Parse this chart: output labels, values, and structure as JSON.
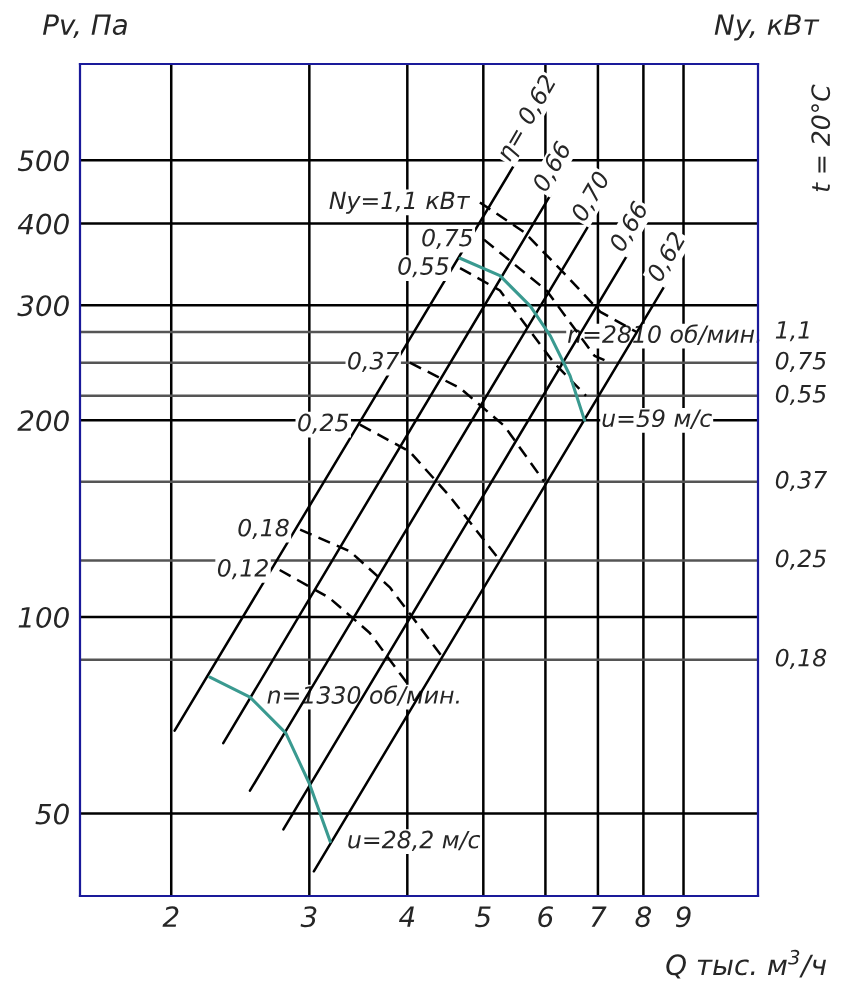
{
  "chart_data": {
    "type": "line",
    "xlabel": "Q тыс. м$^{3}$/ч",
    "ylabel": "Pv, Па",
    "y2label": "Ny, кВт",
    "log": "xy",
    "xlim": [
      1.53,
      11.2
    ],
    "ylim": [
      37.4,
      702
    ],
    "xticks": [
      2,
      3,
      4,
      5,
      6,
      7,
      8,
      9
    ],
    "yticks": [
      50,
      100,
      200,
      300,
      400,
      500
    ],
    "grid": true,
    "legend": false,
    "series": [
      {
        "name": "η= 0,62",
        "color": "#000000",
        "line_style": "solid",
        "x": [
          2.02,
          5.47
        ],
        "values": [
          67.0,
          491
        ]
      },
      {
        "name": "0,66",
        "color": "#000000",
        "line_style": "solid",
        "x": [
          2.33,
          6.08
        ],
        "values": [
          64.1,
          441
        ]
      },
      {
        "name": "0,70",
        "color": "#000000",
        "line_style": "solid",
        "x": [
          2.52,
          6.81
        ],
        "values": [
          54.2,
          397
        ]
      },
      {
        "name": "0,66",
        "color": "#000000",
        "line_style": "solid",
        "x": [
          2.78,
          7.62
        ],
        "values": [
          47.3,
          357
        ]
      },
      {
        "name": "0,62",
        "color": "#000000",
        "line_style": "solid",
        "x": [
          3.04,
          8.51
        ],
        "values": [
          40.8,
          321
        ]
      },
      {
        "name": "Ny=1,1 кВт",
        "color": "#000000",
        "line_style": "dashed",
        "x": [
          4.95,
          5.64,
          6.38,
          7.05,
          7.84
        ],
        "values": [
          431,
          388,
          333,
          293,
          273
        ]
      },
      {
        "name": "0,75",
        "color": "#000000",
        "line_style": "dashed",
        "x": [
          5.01,
          6.02,
          6.93,
          7.26
        ],
        "values": [
          378,
          316,
          251,
          245
        ]
      },
      {
        "name": "0,55",
        "color": "#000000",
        "line_style": "dashed",
        "x": [
          4.67,
          5.25,
          6.15,
          6.76
        ],
        "values": [
          342,
          316,
          245,
          218
        ]
      },
      {
        "name": "0,37",
        "color": "#000000",
        "line_style": "dashed",
        "x": [
          4.03,
          4.67,
          5.32,
          5.98
        ],
        "values": [
          245,
          224,
          196,
          161
        ]
      },
      {
        "name": "0,25",
        "color": "#000000",
        "line_style": "dashed",
        "x": [
          3.48,
          4.03,
          4.53,
          5.25
        ],
        "values": [
          197,
          179,
          153,
          122
        ]
      },
      {
        "name": "0,18",
        "color": "#000000",
        "line_style": "dashed",
        "x": [
          2.92,
          3.38,
          3.8,
          4.46
        ],
        "values": [
          136,
          126,
          111,
          86
        ]
      },
      {
        "name": "0,12",
        "color": "#000000",
        "line_style": "dashed",
        "x": [
          2.75,
          3.18,
          3.58,
          4.03
        ],
        "values": [
          118,
          107,
          94.6,
          78.2
        ]
      },
      {
        "color": "#3a9a90",
        "line_style": "solid",
        "x": [
          4.67,
          5.25,
          5.74,
          6.09,
          6.45,
          6.73
        ],
        "values": [
          354,
          333,
          299,
          269,
          234,
          200
        ]
      },
      {
        "color": "#3a9a90",
        "line_style": "solid",
        "x": [
          2.24,
          2.52,
          2.8,
          3.0,
          3.19
        ],
        "values": [
          80.9,
          75.4,
          66.4,
          55.6,
          45.3
        ]
      }
    ],
    "ref_lines": [
      {
        "axis": "y",
        "value": 273
      },
      {
        "axis": "y",
        "value": 245
      },
      {
        "axis": "y",
        "value": 218
      },
      {
        "axis": "y",
        "value": 161
      },
      {
        "axis": "y",
        "value": 122
      },
      {
        "axis": "y",
        "value": 86
      }
    ],
    "annotations": [
      {
        "text": "1,1",
        "x": 11.2,
        "y": 273
      },
      {
        "text": "0,75",
        "x": 11.2,
        "y": 245
      },
      {
        "text": "0,55",
        "x": 11.2,
        "y": 218
      },
      {
        "text": "0,37",
        "x": 11.2,
        "y": 161
      },
      {
        "text": "0,25",
        "x": 11.2,
        "y": 122
      },
      {
        "text": "0,18",
        "x": 11.2,
        "y": 86
      },
      {
        "text": "n=2810 об/мин.",
        "x": 6.09,
        "y": 269
      },
      {
        "text": "u=59 м/с",
        "x": 6.73,
        "y": 200
      },
      {
        "text": "n=1330 об/мин.",
        "x": 2.52,
        "y": 75.4
      },
      {
        "text": "u=28,2 м/с",
        "x": 3.19,
        "y": 45.3
      },
      "t = 20°C"
    ]
  }
}
